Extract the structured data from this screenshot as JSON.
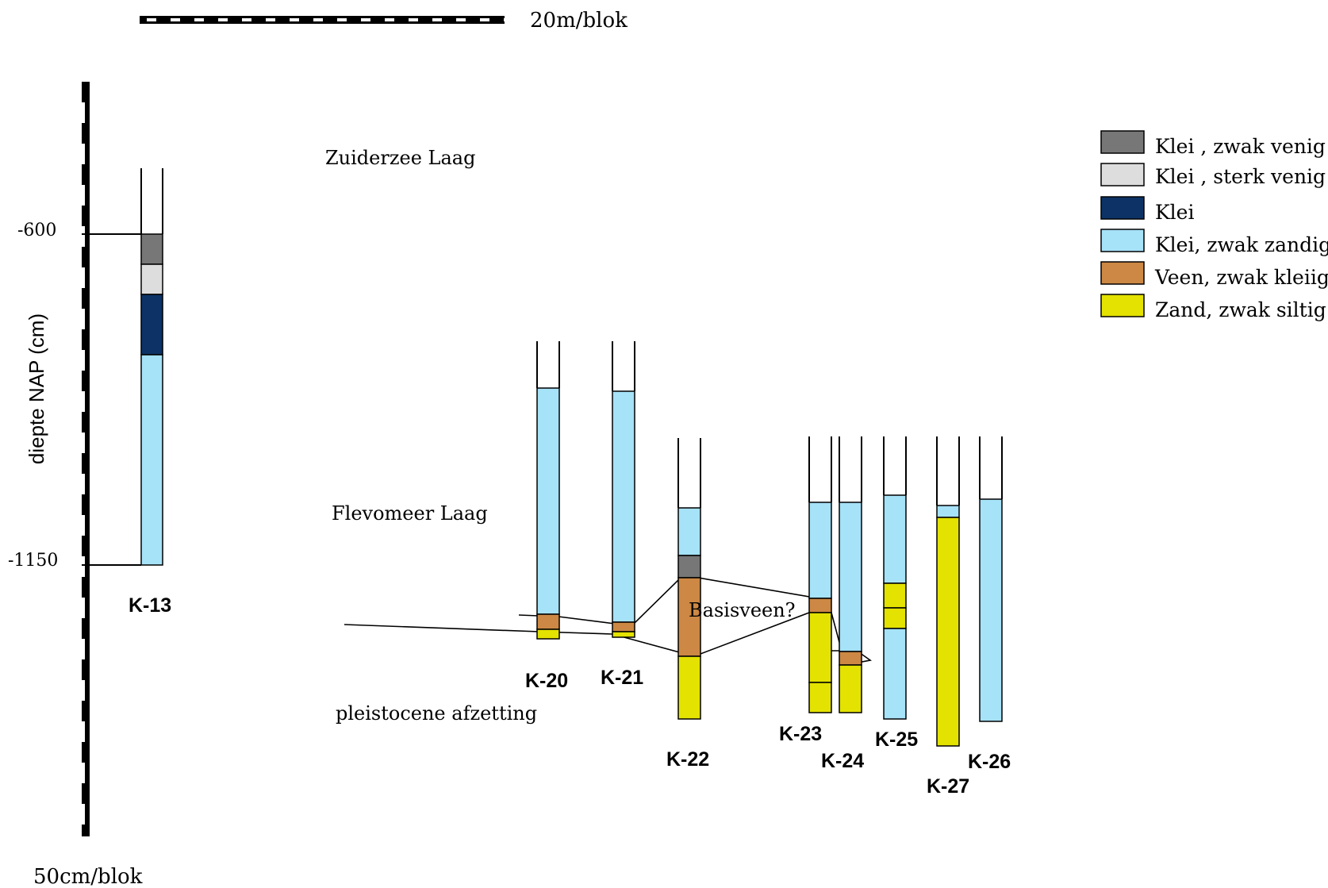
{
  "scales": {
    "horizontal_label": "20m/blok",
    "vertical_label": "50cm/blok",
    "axis_title": "diepte NAP (cm)",
    "tick_labels": [
      "-600",
      "-1150"
    ]
  },
  "units": {
    "zuiderzee": "Zuiderzee Laag",
    "flevomeer": "Flevomeer Laag",
    "pleistoceen": "pleistocene afzetting"
  },
  "annotation": "Basisveen?",
  "legend": [
    {
      "label": "Klei , zwak venig",
      "color": "#777777"
    },
    {
      "label": "Klei , sterk venig",
      "color": "#dddddd"
    },
    {
      "label": "Klei",
      "color": "#0d3366"
    },
    {
      "label": "Klei, zwak zandig",
      "color": "#a6e2f8"
    },
    {
      "label": "Veen, zwak kleiig",
      "color": "#cc8844"
    },
    {
      "label": "Zand, zwak siltig",
      "color": "#e3e200"
    }
  ],
  "boreholes": [
    {
      "id": "K-13"
    },
    {
      "id": "K-20"
    },
    {
      "id": "K-21"
    },
    {
      "id": "K-22"
    },
    {
      "id": "K-23"
    },
    {
      "id": "K-24"
    },
    {
      "id": "K-25"
    },
    {
      "id": "K-26"
    },
    {
      "id": "K-27"
    }
  ]
}
